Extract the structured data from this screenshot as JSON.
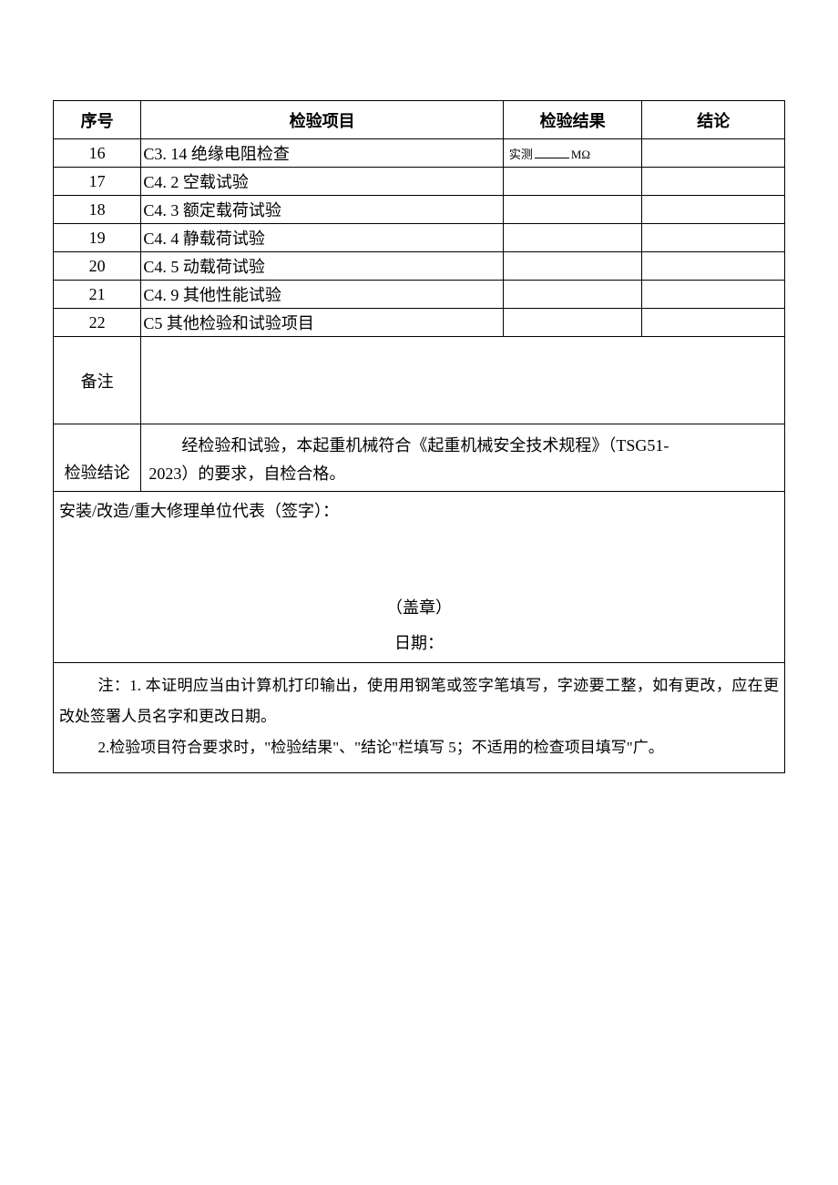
{
  "header": {
    "seq": "序号",
    "item": "检验项目",
    "result": "检验结果",
    "conclusion": "结论"
  },
  "rows": [
    {
      "seq": "16",
      "item": "C3. 14 绝缘电阻检查",
      "result_prefix": "实测",
      "result_unit": "MΩ"
    },
    {
      "seq": "17",
      "item": "C4. 2 空载试验"
    },
    {
      "seq": "18",
      "item": "C4. 3 额定载荷试验"
    },
    {
      "seq": "19",
      "item": "C4. 4 静载荷试验"
    },
    {
      "seq": "20",
      "item": "C4. 5 动载荷试验"
    },
    {
      "seq": "21",
      "item": "C4. 9 其他性能试验"
    },
    {
      "seq": "22",
      "item": "C5 其他检验和试验项目"
    }
  ],
  "remark_label": "备注",
  "conclusion_label": "检验结论",
  "conclusion_body_line1": "经检验和试验，本起重机械符合《起重机械安全技术规程》（TSG51-",
  "conclusion_body_line2": "2023）的要求，自检合格。",
  "sig_line1": "安装/改造/重大修理单位代表（签字）：",
  "stamp": "（盖章）",
  "date_label": "日期：",
  "note1": "注：1. 本证明应当由计算机打印输出，使用用钢笔或签字笔填写，字迹要工整，如有更改，应在更改处签署人员名字和更改日期。",
  "note2": "2.检验项目符合要求时，\"检验结果\"、\"结论\"栏填写 5；不适用的检查项目填写\"广。",
  "colors": {
    "text": "#000000",
    "border": "#000000",
    "bg": "#ffffff"
  },
  "fontsize": {
    "body": 18,
    "small": 13,
    "notes": 17
  }
}
